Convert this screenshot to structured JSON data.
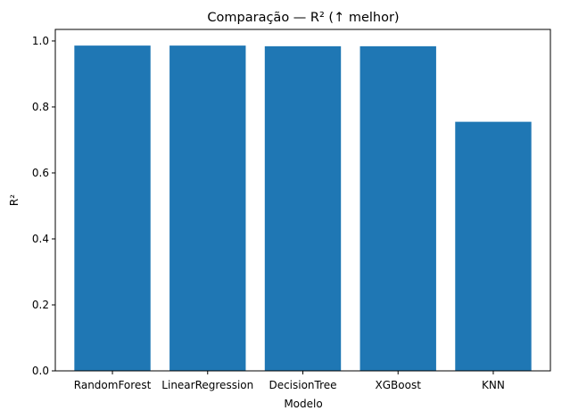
{
  "chart_data": {
    "type": "bar",
    "title": "Comparação — R² (↑ melhor)",
    "xlabel": "Modelo",
    "ylabel": "R²",
    "categories": [
      "RandomForest",
      "LinearRegression",
      "DecisionTree",
      "XGBoost",
      "KNN"
    ],
    "values": [
      0.986,
      0.986,
      0.984,
      0.984,
      0.755
    ],
    "ylim": [
      0,
      1.035
    ],
    "yticks": [
      0.0,
      0.2,
      0.4,
      0.6,
      0.8,
      1.0
    ],
    "ytick_labels": [
      "0.0",
      "0.2",
      "0.4",
      "0.6",
      "0.8",
      "1.0"
    ],
    "bar_color": "#1f77b4",
    "grid": false,
    "legend": "none"
  }
}
